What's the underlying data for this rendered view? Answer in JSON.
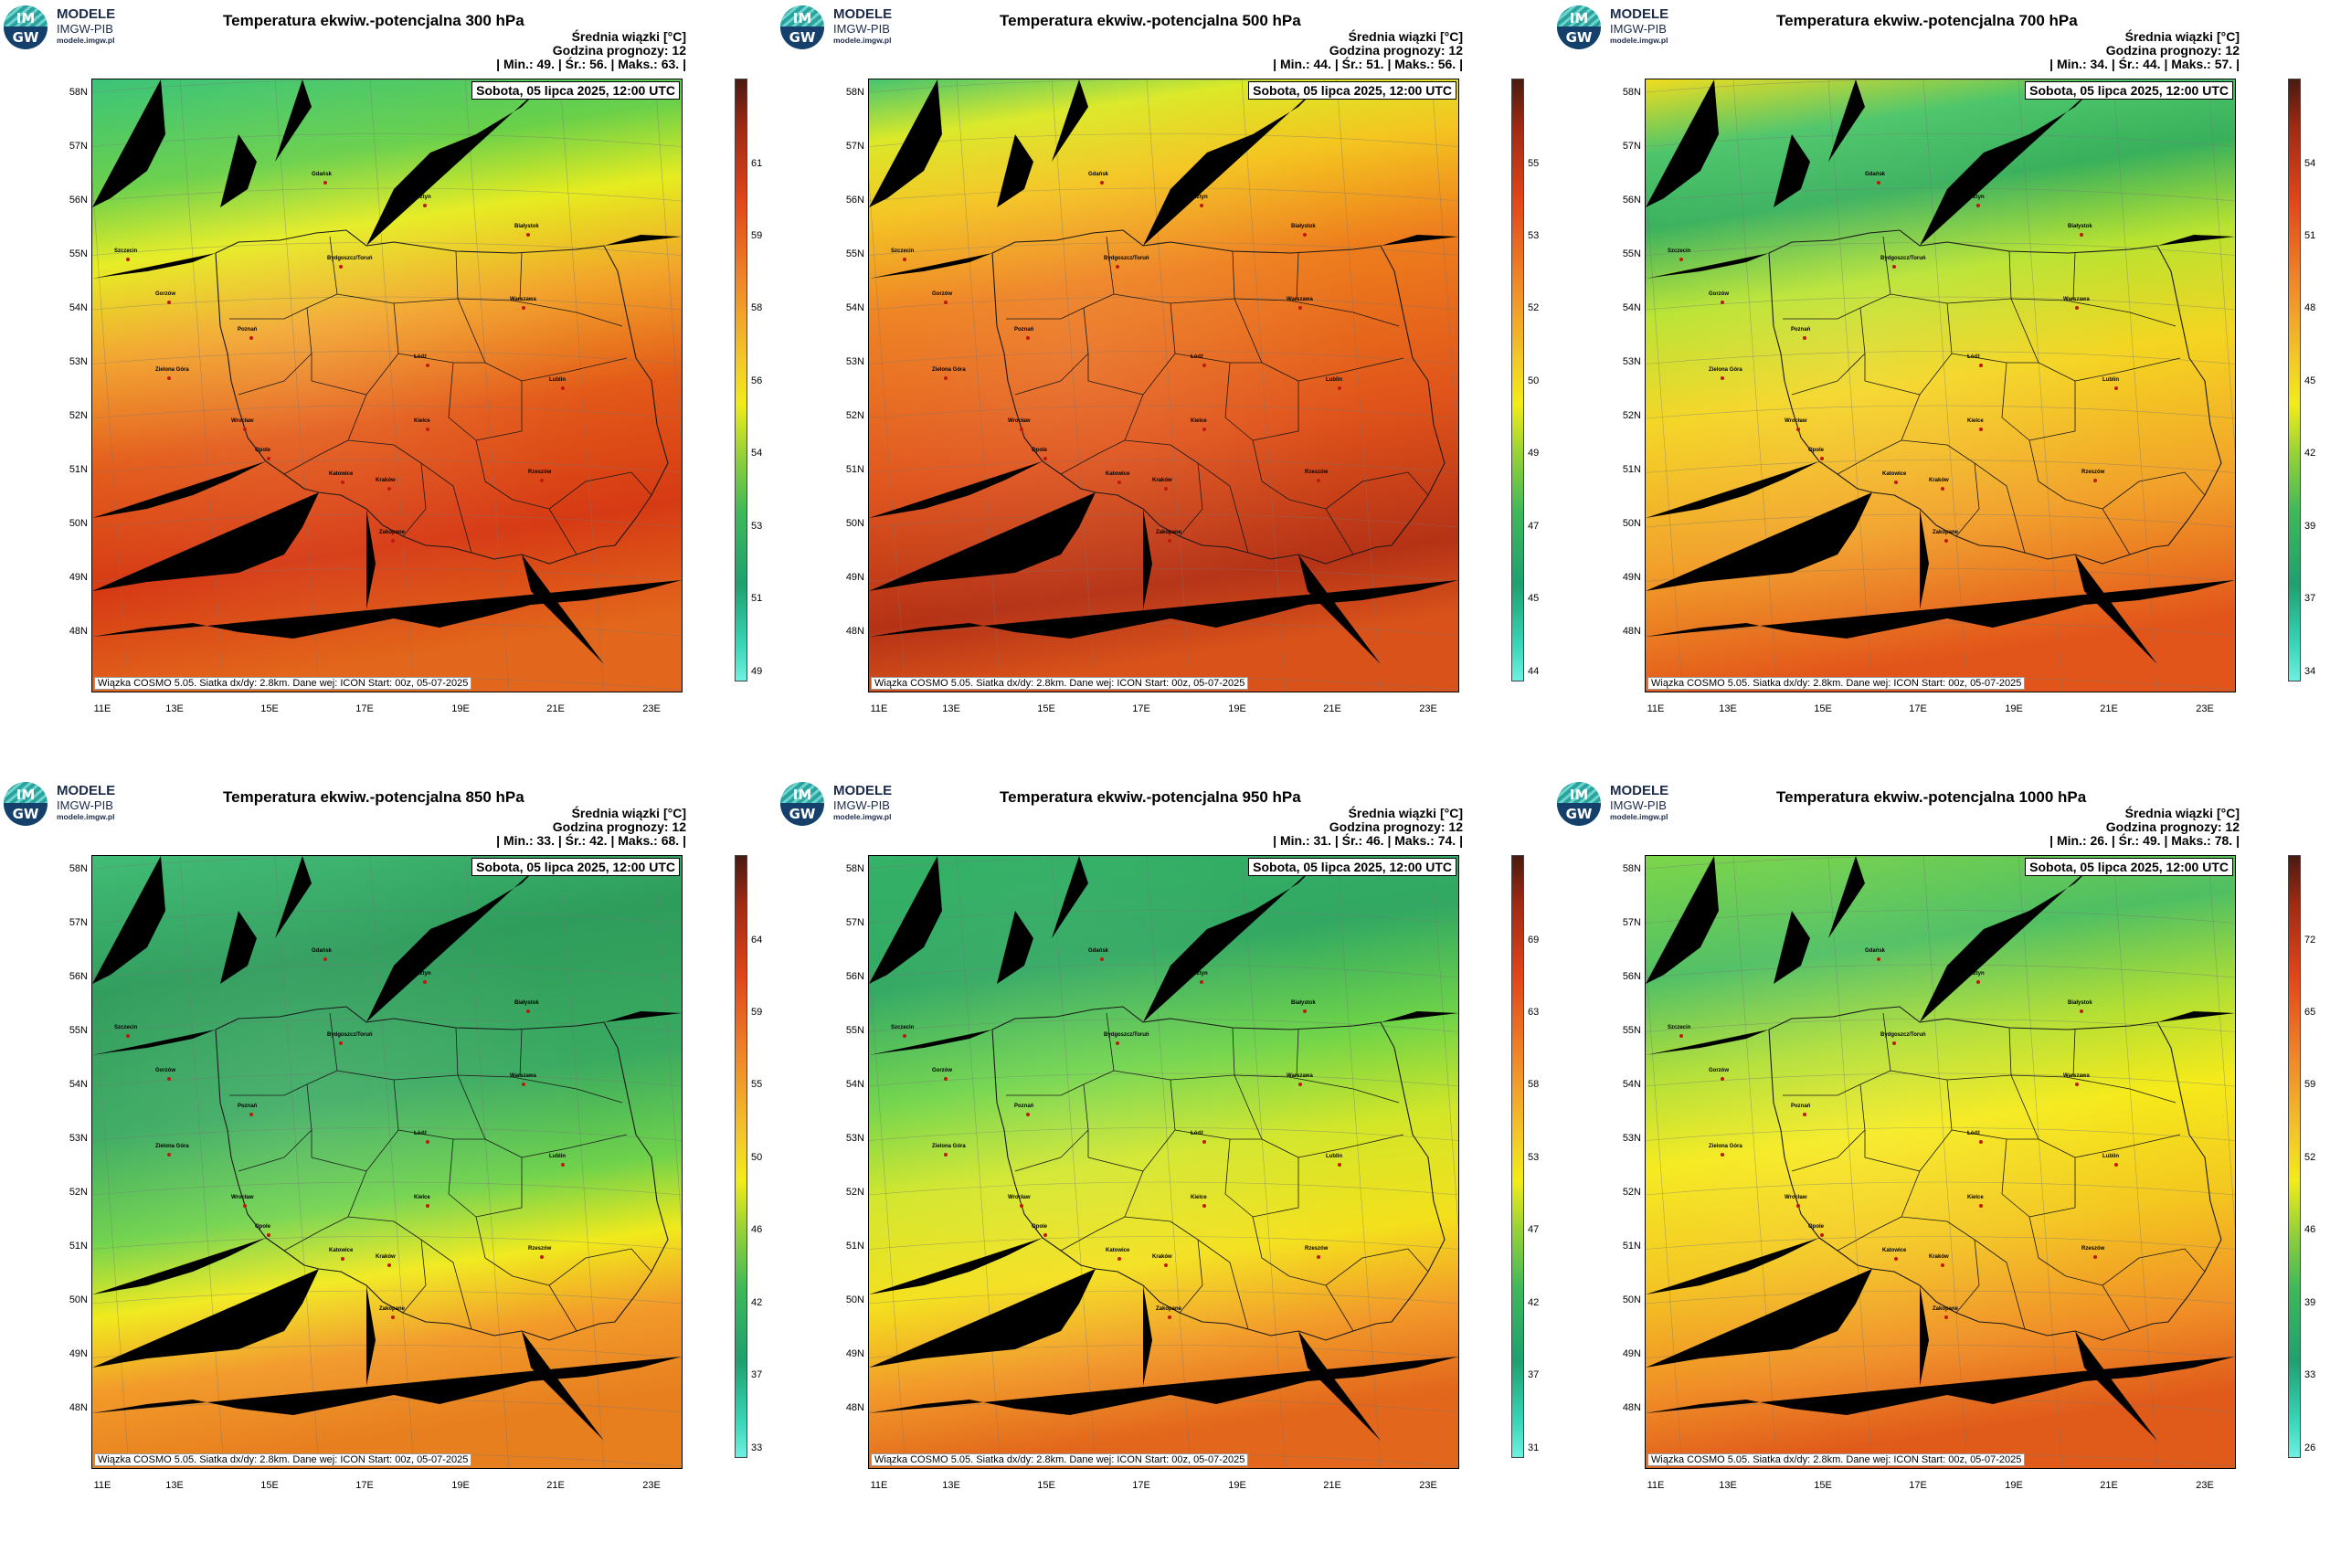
{
  "logo": {
    "line1": "MODELE",
    "line2": "IMGW-PIB",
    "line3": "modele.imgw.pl",
    "badge_top": "IM",
    "badge_bottom": "GW"
  },
  "common": {
    "date": "Sobota, 05 lipca 2025, 12:00 UTC",
    "mean_label": "Średnia wiązki [°C]",
    "forecast_hour": "Godzina prognozy: 12",
    "credit": "Wiązka COSMO 5.05. Siatka dx/dy: 2.8km. Dane wej: ICON Start: 00z, 05-07-2025",
    "lat_labels": [
      "58N",
      "57N",
      "56N",
      "55N",
      "54N",
      "53N",
      "52N",
      "51N",
      "50N",
      "49N",
      "48N"
    ],
    "lon_labels": [
      "11E",
      "13E",
      "15E",
      "17E",
      "19E",
      "21E",
      "23E"
    ]
  },
  "panels": [
    {
      "title": "Temperatura ekwiw.-potencjalna 300 hPa",
      "stats": "| Min.:    49. | Śr.:    56. | Maks.:   63. |",
      "scale": [
        "61",
        "59",
        "58",
        "56",
        "54",
        "53",
        "51",
        "49"
      ],
      "scheme": "p300"
    },
    {
      "title": "Temperatura ekwiw.-potencjalna 500 hPa",
      "stats": "| Min.:    44. | Śr.:    51. | Maks.:   56. |",
      "scale": [
        "55",
        "53",
        "52",
        "50",
        "49",
        "47",
        "45",
        "44"
      ],
      "scheme": "p500"
    },
    {
      "title": "Temperatura ekwiw.-potencjalna 700 hPa",
      "stats": "| Min.:    34. | Śr.:    44. | Maks.:   57. |",
      "scale": [
        "54",
        "51",
        "48",
        "45",
        "42",
        "39",
        "37",
        "34"
      ],
      "scheme": "p700"
    },
    {
      "title": "Temperatura ekwiw.-potencjalna 850 hPa",
      "stats": "| Min.:    33. | Śr.:    42. | Maks.:   68. |",
      "scale": [
        "64",
        "59",
        "55",
        "50",
        "46",
        "42",
        "37",
        "33"
      ],
      "scheme": "p850"
    },
    {
      "title": "Temperatura ekwiw.-potencjalna 950 hPa",
      "stats": "| Min.:    31. | Śr.:    46. | Maks.:   74. |",
      "scale": [
        "69",
        "63",
        "58",
        "53",
        "47",
        "42",
        "37",
        "31"
      ],
      "scheme": "p950"
    },
    {
      "title": "Temperatura ekwiw.-potencjalna 1000 hPa",
      "stats": "| Min.:    26. | Śr.:    49. | Maks.:   78. |",
      "scale": [
        "72",
        "65",
        "59",
        "52",
        "46",
        "39",
        "33",
        "26"
      ],
      "scheme": "p1000"
    }
  ],
  "cities": [
    "Gdańsk",
    "Olsztyn",
    "Szczecin",
    "Białystok",
    "Bydgoszcz/Toruń",
    "Gorzów",
    "Warszawa",
    "Poznań",
    "Łódź",
    "Zielona Góra",
    "Lublin",
    "Wrocław",
    "Kielce",
    "Opole",
    "Katowice",
    "Kraków",
    "Rzeszów",
    "Zakopane"
  ],
  "colors": {
    "cyan": "#40e0d0",
    "green": "#2db560",
    "yellow": "#f2ec1a",
    "orange": "#ef8a1e",
    "red": "#d93418",
    "darkred": "#5a1a10"
  }
}
